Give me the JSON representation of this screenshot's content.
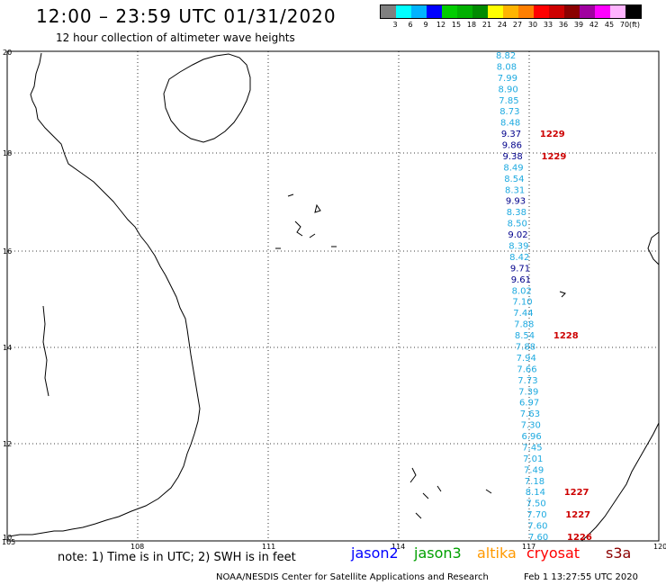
{
  "title": "12:00 – 23:59 UTC 01/31/2020",
  "subtitle": "12 hour collection of altimeter wave heights",
  "scale": {
    "unit": "(ft)",
    "colors": [
      "#808080",
      "#00ffff",
      "#00b4ff",
      "#0000ff",
      "#00cd00",
      "#00b000",
      "#008b00",
      "#ffff00",
      "#ffb400",
      "#ff7f00",
      "#ff0000",
      "#cd0000",
      "#8b0000",
      "#a000a0",
      "#ff00ff",
      "#ffb4ff",
      "#000000"
    ],
    "labels": [
      "3",
      "6",
      "9",
      "12",
      "15",
      "18",
      "21",
      "24",
      "27",
      "30",
      "33",
      "36",
      "39",
      "42",
      "45",
      "70"
    ]
  },
  "axes": {
    "lon_labels": [
      "105",
      "108",
      "111",
      "114",
      "117",
      "120"
    ],
    "lat_labels": [
      "20",
      "18",
      "16",
      "14",
      "12",
      "10"
    ]
  },
  "observations": [
    {
      "value": "8.82",
      "color": "#1eaae0"
    },
    {
      "value": "8.08",
      "color": "#1eaae0"
    },
    {
      "value": "7.99",
      "color": "#1eaae0"
    },
    {
      "value": "8.90",
      "color": "#1eaae0"
    },
    {
      "value": "7.85",
      "color": "#1eaae0"
    },
    {
      "value": "8.73",
      "color": "#1eaae0"
    },
    {
      "value": "8.48",
      "color": "#1eaae0"
    },
    {
      "value": "9.37",
      "color": "#00008b",
      "time": "1229"
    },
    {
      "value": "9.86",
      "color": "#00008b"
    },
    {
      "value": "9.38",
      "color": "#00008b",
      "time": "1229"
    },
    {
      "value": "8.49",
      "color": "#1eaae0"
    },
    {
      "value": "8.54",
      "color": "#1eaae0"
    },
    {
      "value": "8.31",
      "color": "#1eaae0"
    },
    {
      "value": "9.93",
      "color": "#00008b"
    },
    {
      "value": "8.38",
      "color": "#1eaae0"
    },
    {
      "value": "8.50",
      "color": "#1eaae0"
    },
    {
      "value": "9.02",
      "color": "#00008b"
    },
    {
      "value": "8.39",
      "color": "#1eaae0"
    },
    {
      "value": "8.42",
      "color": "#1eaae0"
    },
    {
      "value": "9.71",
      "color": "#00008b"
    },
    {
      "value": "9.61",
      "color": "#00008b"
    },
    {
      "value": "8.02",
      "color": "#1eaae0"
    },
    {
      "value": "7.10",
      "color": "#1eaae0"
    },
    {
      "value": "7.44",
      "color": "#1eaae0"
    },
    {
      "value": "7.88",
      "color": "#1eaae0"
    },
    {
      "value": "8.54",
      "color": "#1eaae0",
      "time": "1228"
    },
    {
      "value": "7.88",
      "color": "#1eaae0"
    },
    {
      "value": "7.94",
      "color": "#1eaae0"
    },
    {
      "value": "7.66",
      "color": "#1eaae0"
    },
    {
      "value": "7.73",
      "color": "#1eaae0"
    },
    {
      "value": "7.39",
      "color": "#1eaae0"
    },
    {
      "value": "6.97",
      "color": "#1eaae0"
    },
    {
      "value": "7.63",
      "color": "#1eaae0"
    },
    {
      "value": "7.30",
      "color": "#1eaae0"
    },
    {
      "value": "6.96",
      "color": "#1eaae0"
    },
    {
      "value": "7.45",
      "color": "#1eaae0"
    },
    {
      "value": "7.01",
      "color": "#1eaae0"
    },
    {
      "value": "7.49",
      "color": "#1eaae0"
    },
    {
      "value": "7.18",
      "color": "#1eaae0"
    },
    {
      "value": "8.14",
      "color": "#1eaae0",
      "time": "1227"
    },
    {
      "value": "7.50",
      "color": "#1eaae0"
    },
    {
      "value": "7.70",
      "color": "#1eaae0",
      "time": "1227"
    },
    {
      "value": "7.60",
      "color": "#1eaae0"
    },
    {
      "value": "7.60",
      "color": "#1eaae0",
      "time": "1226"
    }
  ],
  "time_label_color": "#cd0000",
  "footer": {
    "note": "note: 1) Time is in UTC; 2) SWH is in feet",
    "satellites": [
      {
        "name": "jason2",
        "color": "#0000ff"
      },
      {
        "name": "jason3",
        "color": "#00a000"
      },
      {
        "name": "altika",
        "color": "#ff9900"
      },
      {
        "name": "cryosat",
        "color": "#ff0000"
      },
      {
        "name": "s3a",
        "color": "#8b0000"
      }
    ],
    "credit": "NOAA/NESDIS Center for Satellite Applications and Research",
    "timestamp": "Feb  1 13:27:55 UTC 2020"
  }
}
